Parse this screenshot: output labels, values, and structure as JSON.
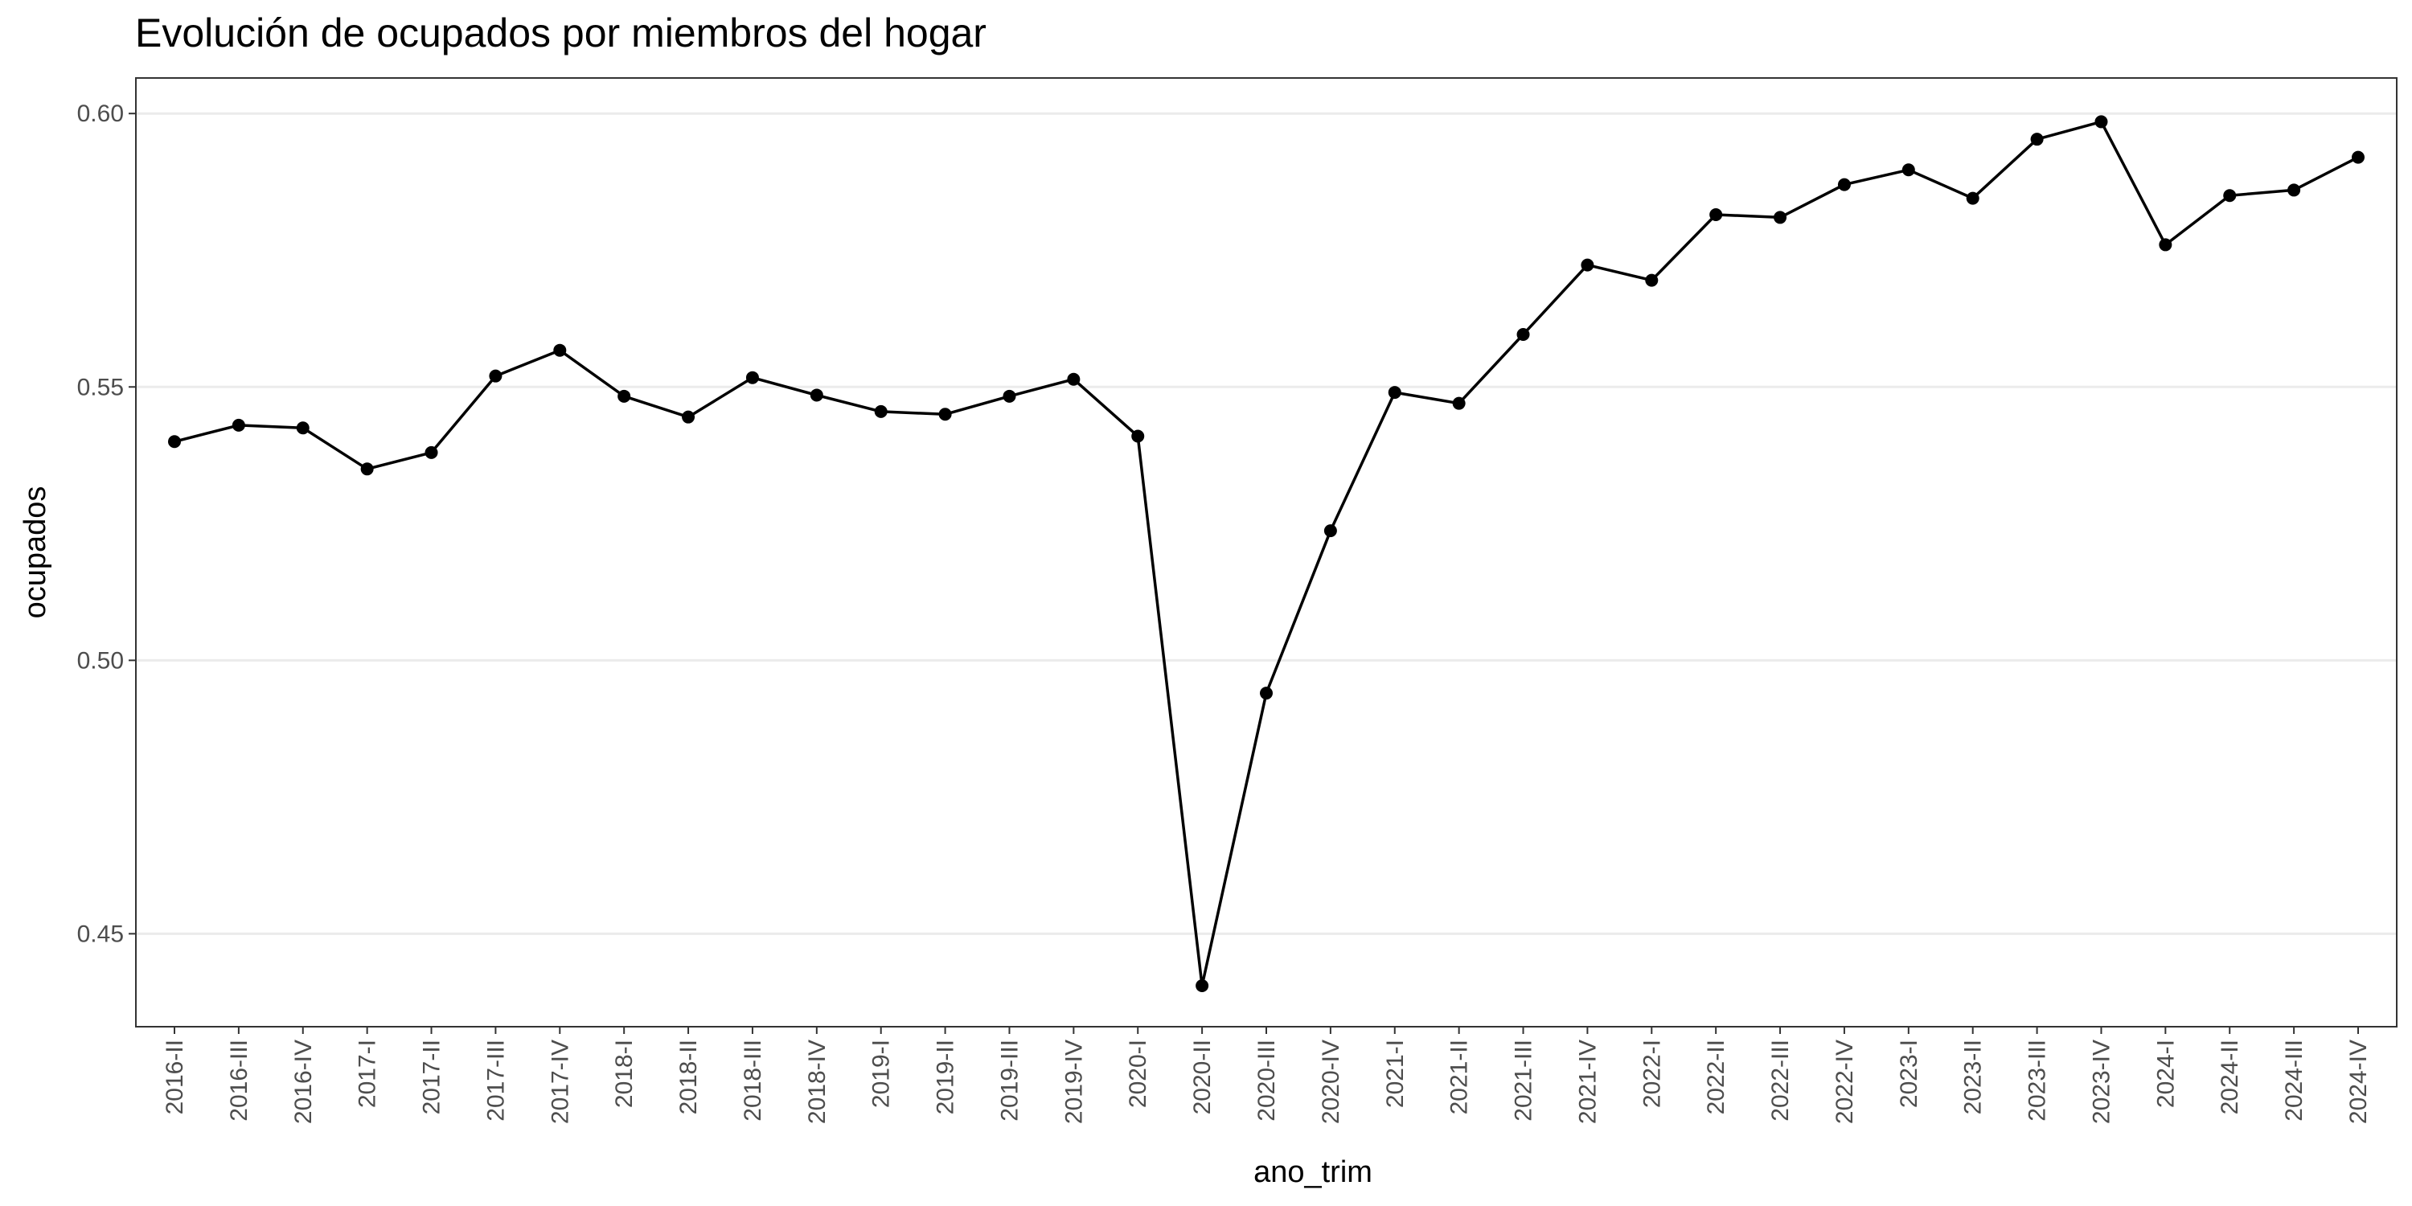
{
  "chart_data": {
    "type": "line",
    "title": "Evolución de ocupados por miembros del hogar",
    "xlabel": "ano_trim",
    "ylabel": "ocupados",
    "ylim": [
      0.433,
      0.6065
    ],
    "yticks": [
      0.45,
      0.5,
      0.55,
      0.6
    ],
    "ytick_labels": [
      "0.45",
      "0.50",
      "0.55",
      "0.60"
    ],
    "grid": "horizontal",
    "colors": {
      "line": "#000000",
      "grid": "#ebebeb",
      "panel_border": "#333333",
      "tick_text": "#4d4d4d"
    },
    "categories": [
      "2016-II",
      "2016-III",
      "2016-IV",
      "2017-I",
      "2017-II",
      "2017-III",
      "2017-IV",
      "2018-I",
      "2018-II",
      "2018-III",
      "2018-IV",
      "2019-I",
      "2019-II",
      "2019-III",
      "2019-IV",
      "2020-I",
      "2020-II",
      "2020-III",
      "2020-IV",
      "2021-I",
      "2021-II",
      "2021-III",
      "2021-IV",
      "2022-I",
      "2022-II",
      "2022-III",
      "2022-IV",
      "2023-I",
      "2023-II",
      "2023-III",
      "2023-IV",
      "2024-I",
      "2024-II",
      "2024-III",
      "2024-IV"
    ],
    "series": [
      {
        "values": [
          0.54,
          0.543,
          0.5425,
          0.535,
          0.538,
          0.552,
          0.5567,
          0.5483,
          0.5445,
          0.5517,
          0.5485,
          0.5455,
          0.545,
          0.5483,
          0.5514,
          0.541,
          0.4405,
          0.494,
          0.5237,
          0.549,
          0.547,
          0.5596,
          0.5723,
          0.5695,
          0.5815,
          0.581,
          0.587,
          0.5897,
          0.5845,
          0.5953,
          0.5985,
          0.576,
          0.585,
          0.586,
          0.592
        ]
      }
    ]
  }
}
